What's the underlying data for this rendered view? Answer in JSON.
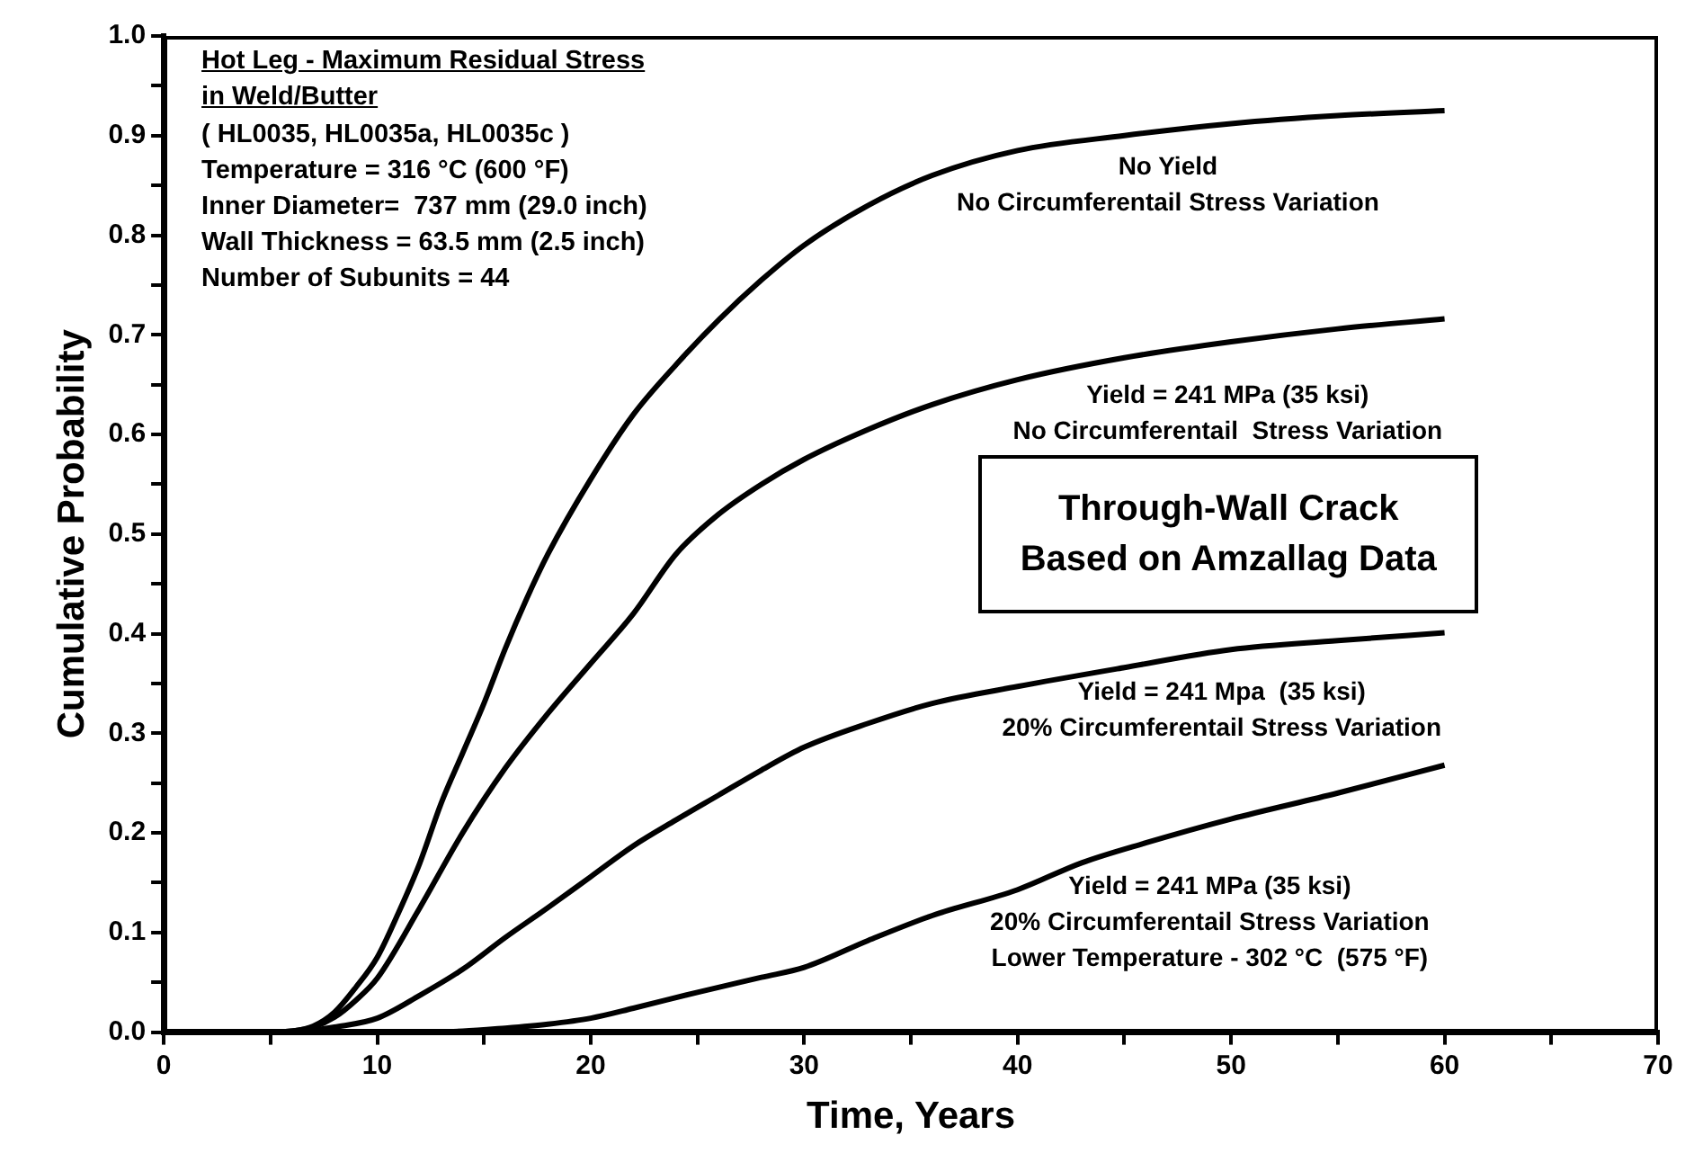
{
  "chart_data": {
    "type": "line",
    "xlabel": "Time, Years",
    "ylabel": "Cumulative Probability",
    "xlim": [
      0,
      70
    ],
    "xticks": [
      0,
      {
        "value": 5,
        "label": null
      },
      10,
      {
        "value": 15,
        "label": null
      },
      20,
      {
        "value": 25,
        "label": null
      },
      30,
      {
        "value": 35,
        "label": null
      },
      40,
      {
        "value": 45,
        "label": null
      },
      50,
      {
        "value": 55,
        "label": null
      },
      60,
      {
        "value": 65,
        "label": null
      },
      70
    ],
    "ylim": [
      0,
      1
    ],
    "yticks": [
      {
        "value": 0,
        "label": "0.0"
      },
      {
        "value": 0.05,
        "label": null
      },
      {
        "value": 0.1,
        "label": "0.1"
      },
      {
        "value": 0.15,
        "label": null
      },
      {
        "value": 0.2,
        "label": "0.2"
      },
      {
        "value": 0.25,
        "label": null
      },
      {
        "value": 0.3,
        "label": "0.3"
      },
      {
        "value": 0.35,
        "label": null
      },
      {
        "value": 0.4,
        "label": "0.4"
      },
      {
        "value": 0.45,
        "label": null
      },
      {
        "value": 0.5,
        "label": "0.5"
      },
      {
        "value": 0.55,
        "label": null
      },
      {
        "value": 0.6,
        "label": "0.6"
      },
      {
        "value": 0.65,
        "label": null
      },
      {
        "value": 0.7,
        "label": "0.7"
      },
      {
        "value": 0.75,
        "label": null
      },
      {
        "value": 0.8,
        "label": "0.8"
      },
      {
        "value": 0.85,
        "label": null
      },
      {
        "value": 0.9,
        "label": "0.9"
      },
      {
        "value": 0.95,
        "label": null
      },
      {
        "value": 1,
        "label": "1.0"
      }
    ],
    "grid": false,
    "legend": false,
    "marker": "none",
    "line_style": "solid",
    "series": [
      {
        "color": "#000000",
        "x": [
          5,
          6,
          7,
          8,
          9,
          10,
          11,
          12,
          13,
          14,
          15,
          16,
          17,
          18,
          20,
          22,
          24,
          26,
          28,
          30,
          33,
          36,
          40,
          45,
          50,
          55,
          60
        ],
        "values": [
          0,
          0.001,
          0.006,
          0.02,
          0.045,
          0.075,
          0.12,
          0.17,
          0.23,
          0.28,
          0.33,
          0.385,
          0.435,
          0.48,
          0.555,
          0.62,
          0.67,
          0.715,
          0.755,
          0.79,
          0.83,
          0.86,
          0.885,
          0.9,
          0.912,
          0.92,
          0.925
        ]
      },
      {
        "color": "#000000",
        "x": [
          5,
          6,
          7,
          8,
          9,
          10,
          12,
          14,
          16,
          18,
          20,
          22,
          24,
          26,
          28,
          30,
          33,
          36,
          40,
          45,
          50,
          55,
          60
        ],
        "values": [
          0,
          0.001,
          0.005,
          0.015,
          0.032,
          0.054,
          0.125,
          0.2,
          0.265,
          0.32,
          0.37,
          0.42,
          0.48,
          0.52,
          0.55,
          0.575,
          0.605,
          0.63,
          0.655,
          0.677,
          0.693,
          0.706,
          0.716
        ]
      },
      {
        "color": "#000000",
        "x": [
          5,
          7,
          8,
          10,
          12,
          14,
          16,
          18,
          20,
          22,
          24,
          26,
          28,
          30,
          33,
          36,
          40,
          45,
          50,
          55,
          60
        ],
        "values": [
          0,
          0.002,
          0.005,
          0.014,
          0.037,
          0.063,
          0.095,
          0.125,
          0.156,
          0.187,
          0.213,
          0.238,
          0.263,
          0.286,
          0.31,
          0.33,
          0.347,
          0.366,
          0.384,
          0.393,
          0.401
        ]
      },
      {
        "color": "#000000",
        "x": [
          10,
          14,
          16,
          18,
          20,
          22,
          25,
          28,
          30,
          33,
          36,
          40,
          43,
          46,
          50,
          55,
          60
        ],
        "values": [
          0,
          0.001,
          0.004,
          0.008,
          0.014,
          0.024,
          0.04,
          0.055,
          0.065,
          0.092,
          0.117,
          0.143,
          0.17,
          0.19,
          0.214,
          0.24,
          0.268
        ]
      }
    ],
    "annotations": [
      "Hot Leg - Maximum Residual Stress\nin Weld/Butter",
      "( HL0035, HL0035a, HL0035c )\nTemperature = 316 °C (600 °F)\nInner Diameter=  737 mm (29.0 inch)\nWall Thickness = 63.5 mm (2.5 inch)\nNumber of Subunits = 44",
      "Through-Wall Crack\nBased on Amzallag Data",
      "No Yield\nNo Circumferentail Stress Variation",
      "Yield = 241 MPa (35 ksi)\nNo Circumferentail  Stress Variation",
      "Yield = 241 Mpa  (35 ksi)\n20% Circumferentail Stress Variation",
      "Yield = 241 MPa (35 ksi)\n20% Circumferentail Stress Variation\nLower Temperature - 302 °C  (575 °F)"
    ]
  }
}
